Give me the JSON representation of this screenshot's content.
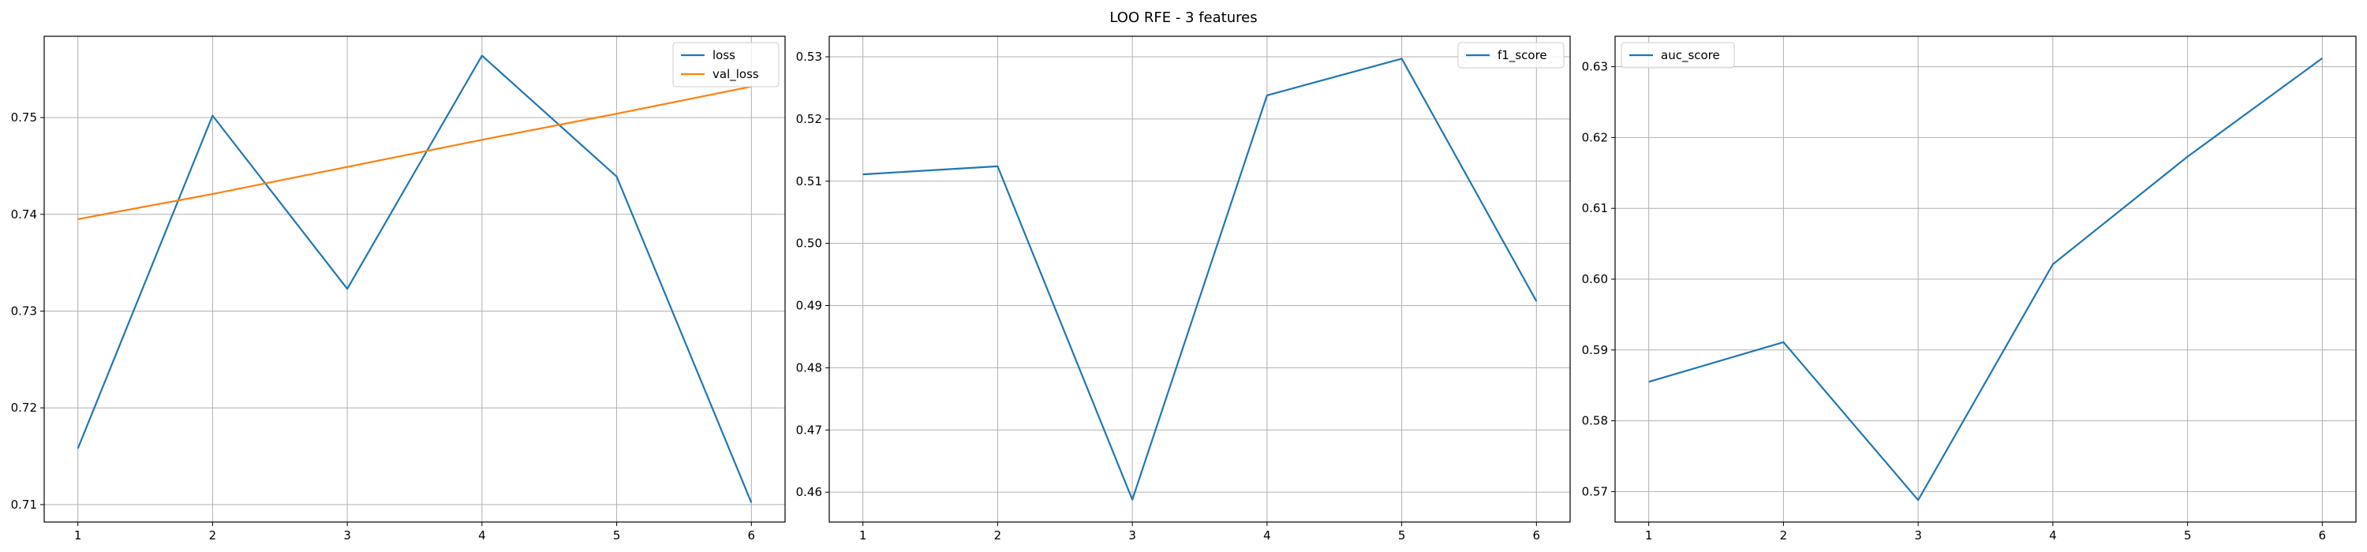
{
  "figure": {
    "suptitle": "LOO RFE - 3 features"
  },
  "chart_data": [
    {
      "type": "line",
      "x": [
        1,
        2,
        3,
        4,
        5,
        6
      ],
      "series": [
        {
          "name": "loss",
          "color": "#1f77b4",
          "values": [
            0.7158,
            0.7502,
            0.7323,
            0.7564,
            0.7439,
            0.7102
          ]
        },
        {
          "name": "val_loss",
          "color": "#ff7f0e",
          "values": [
            0.7395,
            0.7421,
            0.7449,
            0.7477,
            0.7504,
            0.7532
          ]
        }
      ],
      "xticks": [
        1,
        2,
        3,
        4,
        5,
        6
      ],
      "yticks": [
        0.71,
        0.72,
        0.73,
        0.74,
        0.75
      ],
      "ylim": [
        0.7082,
        0.7584
      ],
      "xlim": [
        0.75,
        6.25
      ],
      "grid": true,
      "legend_position": "top-right"
    },
    {
      "type": "line",
      "x": [
        1,
        2,
        3,
        4,
        5,
        6
      ],
      "series": [
        {
          "name": "f1_score",
          "color": "#1f77b4",
          "values": [
            0.5111,
            0.5124,
            0.4588,
            0.5238,
            0.5297,
            0.4907
          ]
        }
      ],
      "xticks": [
        1,
        2,
        3,
        4,
        5,
        6
      ],
      "yticks": [
        0.46,
        0.47,
        0.48,
        0.49,
        0.5,
        0.51,
        0.52,
        0.53
      ],
      "ylim": [
        0.4552,
        0.5333
      ],
      "xlim": [
        0.75,
        6.25
      ],
      "grid": true,
      "legend_position": "top-right"
    },
    {
      "type": "line",
      "x": [
        1,
        2,
        3,
        4,
        5,
        6
      ],
      "series": [
        {
          "name": "auc_score",
          "color": "#1f77b4",
          "values": [
            0.5855,
            0.5911,
            0.5688,
            0.6021,
            0.6173,
            0.6312
          ]
        }
      ],
      "xticks": [
        1,
        2,
        3,
        4,
        5,
        6
      ],
      "yticks": [
        0.57,
        0.58,
        0.59,
        0.6,
        0.61,
        0.62,
        0.63
      ],
      "ylim": [
        0.5657,
        0.6343
      ],
      "xlim": [
        0.75,
        6.25
      ],
      "grid": true,
      "legend_position": "top-left"
    }
  ]
}
